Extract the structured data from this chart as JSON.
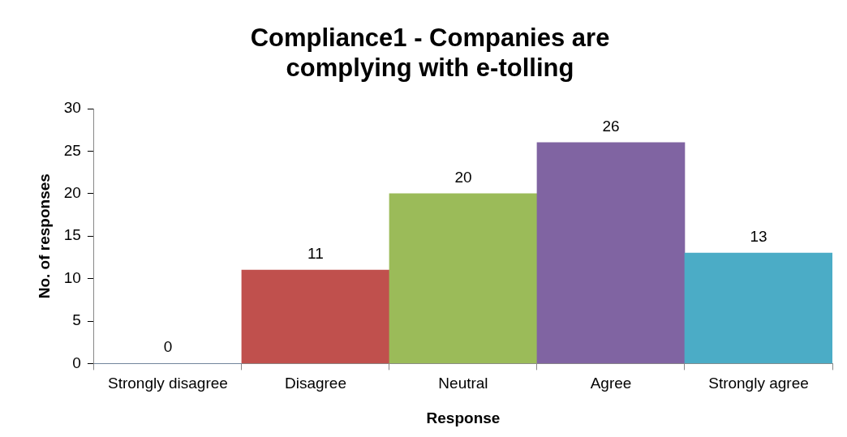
{
  "chart_data": {
    "type": "bar",
    "title": "Compliance1  - Companies are complying with e-tolling",
    "xlabel": "Response",
    "ylabel": "No. of responses",
    "categories": [
      "Strongly disagree",
      "Disagree",
      "Neutral",
      "Agree",
      "Strongly agree"
    ],
    "values": [
      0,
      11,
      20,
      26,
      13
    ],
    "colors": [
      "#4f81bd",
      "#c0504d",
      "#9bbb59",
      "#8064a2",
      "#4bacc6"
    ],
    "ylim": [
      0,
      30
    ],
    "yticks": [
      0,
      5,
      10,
      15,
      20,
      25,
      30
    ],
    "grid": false,
    "legend": false,
    "data_labels": true
  }
}
